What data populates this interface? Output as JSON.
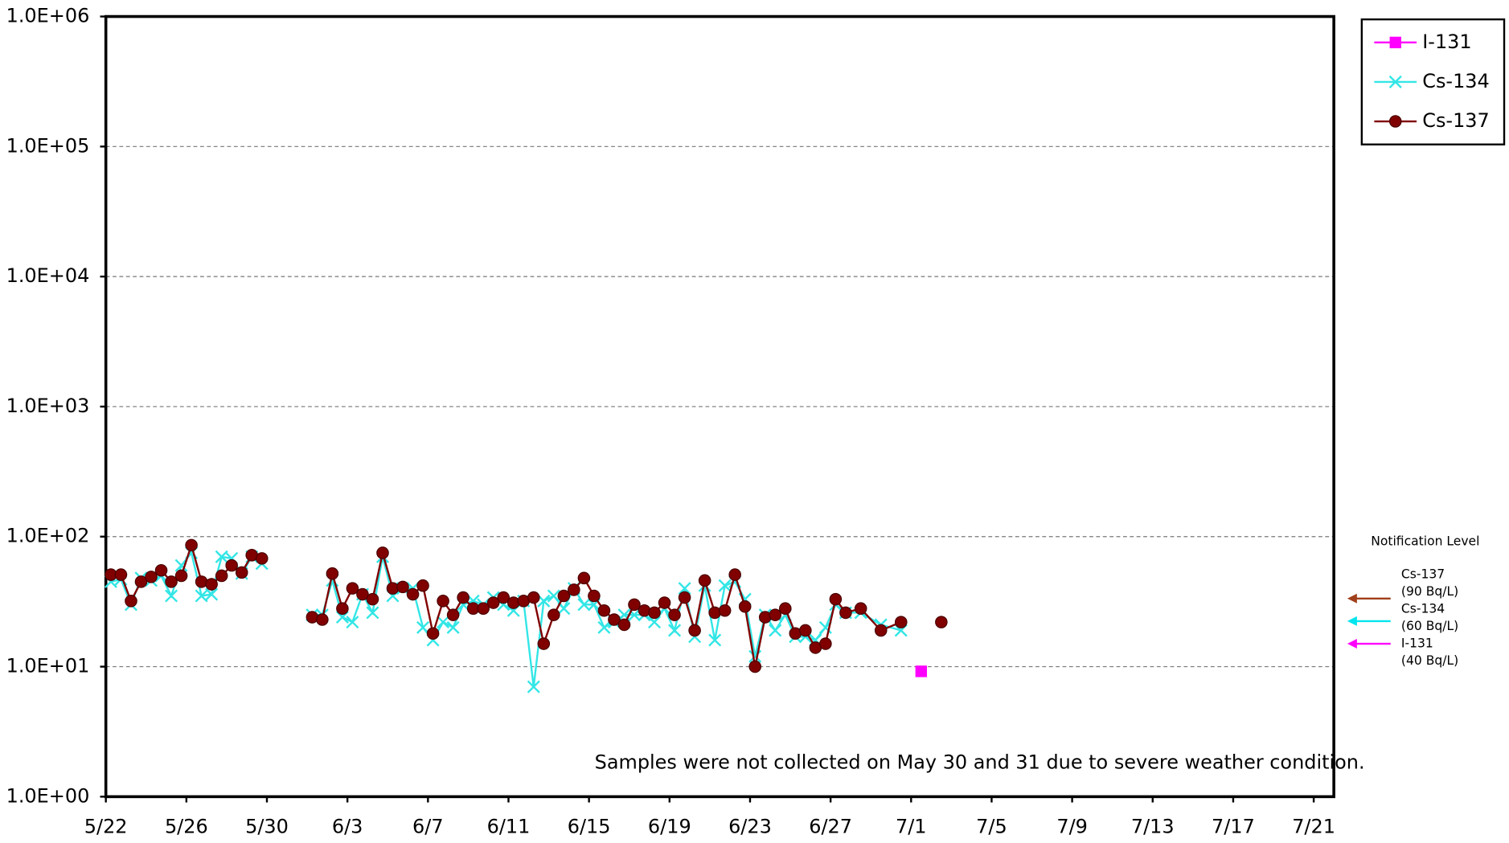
{
  "chart_data": {
    "type": "line",
    "note": "Samples were not collected on May 30 and 31 due to severe weather condition.",
    "x": [
      "5/22",
      "5/22",
      "5/23",
      "5/23",
      "5/24",
      "5/24",
      "5/25",
      "5/25",
      "5/26",
      "5/26",
      "5/27",
      "5/27",
      "5/28",
      "5/28",
      "5/29",
      "5/29",
      "5/30",
      "5/31",
      "6/1",
      "6/1",
      "6/2",
      "6/2",
      "6/3",
      "6/3",
      "6/4",
      "6/4",
      "6/5",
      "6/5",
      "6/6",
      "6/6",
      "6/7",
      "6/7",
      "6/8",
      "6/8",
      "6/9",
      "6/9",
      "6/10",
      "6/10",
      "6/11",
      "6/11",
      "6/12",
      "6/12",
      "6/13",
      "6/13",
      "6/14",
      "6/14",
      "6/15",
      "6/15",
      "6/16",
      "6/16",
      "6/17",
      "6/17",
      "6/18",
      "6/18",
      "6/19",
      "6/19",
      "6/20",
      "6/20",
      "6/21",
      "6/21",
      "6/22",
      "6/22",
      "6/23",
      "6/23",
      "6/24",
      "6/24",
      "6/25",
      "6/25",
      "6/26",
      "6/26",
      "6/27",
      "6/27",
      "6/28",
      "6/29",
      "6/30",
      "7/1",
      "7/2"
    ],
    "series": [
      {
        "name": "I-131",
        "color": "#ff00ff",
        "marker": "square",
        "values": [
          null,
          null,
          null,
          null,
          null,
          null,
          null,
          null,
          null,
          null,
          null,
          null,
          null,
          null,
          null,
          null,
          null,
          null,
          null,
          null,
          null,
          null,
          null,
          null,
          null,
          null,
          null,
          null,
          null,
          null,
          null,
          null,
          null,
          null,
          null,
          null,
          null,
          null,
          null,
          null,
          null,
          null,
          null,
          null,
          null,
          null,
          null,
          null,
          null,
          null,
          null,
          null,
          null,
          null,
          null,
          null,
          null,
          null,
          null,
          null,
          null,
          null,
          null,
          null,
          null,
          null,
          null,
          null,
          null,
          null,
          null,
          null,
          null,
          null,
          null,
          9.2,
          null
        ]
      },
      {
        "name": "Cs-134",
        "color": "#33e6e6",
        "marker": "x",
        "values": [
          45,
          47,
          30,
          48,
          46,
          50,
          35,
          60,
          75,
          35,
          36,
          70,
          68,
          52,
          70,
          62,
          null,
          null,
          25,
          25,
          46,
          24,
          22,
          36,
          26,
          70,
          35,
          40,
          40,
          20,
          16,
          22,
          20,
          30,
          32,
          30,
          34,
          30,
          27,
          32,
          7,
          32,
          35,
          28,
          40,
          30,
          30,
          20,
          22,
          25,
          25,
          25,
          22,
          28,
          19,
          40,
          17,
          42,
          16,
          42,
          45,
          33,
          12,
          25,
          19,
          25,
          17,
          17,
          16,
          20,
          30,
          26,
          26,
          21,
          19,
          null,
          null
        ]
      },
      {
        "name": "Cs-137",
        "color": "#800000",
        "marker": "circle",
        "values": [
          51,
          51,
          32,
          45,
          49,
          55,
          45,
          50,
          86,
          45,
          43,
          50,
          60,
          53,
          72,
          68,
          null,
          null,
          24,
          23,
          52,
          28,
          40,
          36,
          33,
          75,
          40,
          41,
          36,
          42,
          18,
          32,
          25,
          34,
          28,
          28,
          31,
          34,
          31,
          32,
          34,
          15,
          25,
          35,
          39,
          48,
          35,
          27,
          23,
          21,
          30,
          27,
          26,
          31,
          25,
          34,
          19,
          46,
          26,
          27,
          51,
          29,
          10,
          24,
          25,
          28,
          18,
          19,
          14,
          15,
          33,
          26,
          28,
          19,
          22,
          null,
          22
        ]
      }
    ],
    "xlim": [
      "5/22",
      "7/22"
    ],
    "xticks": [
      "5/22",
      "5/26",
      "5/30",
      "6/3",
      "6/7",
      "6/11",
      "6/15",
      "6/19",
      "6/23",
      "6/27",
      "7/1",
      "7/5",
      "7/9",
      "7/13",
      "7/17",
      "7/21"
    ],
    "ylim": [
      1,
      1000000
    ],
    "log_y": true,
    "yticks": [
      {
        "value": 1,
        "label": "1.0E+00"
      },
      {
        "value": 10,
        "label": "1.0E+01"
      },
      {
        "value": 100,
        "label": "1.0E+02"
      },
      {
        "value": 1000,
        "label": "1.0E+03"
      },
      {
        "value": 10000,
        "label": "1.0E+04"
      },
      {
        "value": 100000,
        "label": "1.0E+05"
      },
      {
        "value": 1000000,
        "label": "1.0E+06"
      }
    ],
    "grid": true,
    "legend": "top-right",
    "notification": {
      "title": "Notification Level",
      "items": [
        {
          "name": "Cs-137",
          "level": "(90  Bq/L)",
          "color": "#a0401a"
        },
        {
          "name": "Cs-134",
          "level": "(60  Bq/L)",
          "color": "#00e5ee"
        },
        {
          "name": "I-131",
          "level": "(40  Bq/L)",
          "color": "#ff00ff"
        }
      ]
    }
  }
}
